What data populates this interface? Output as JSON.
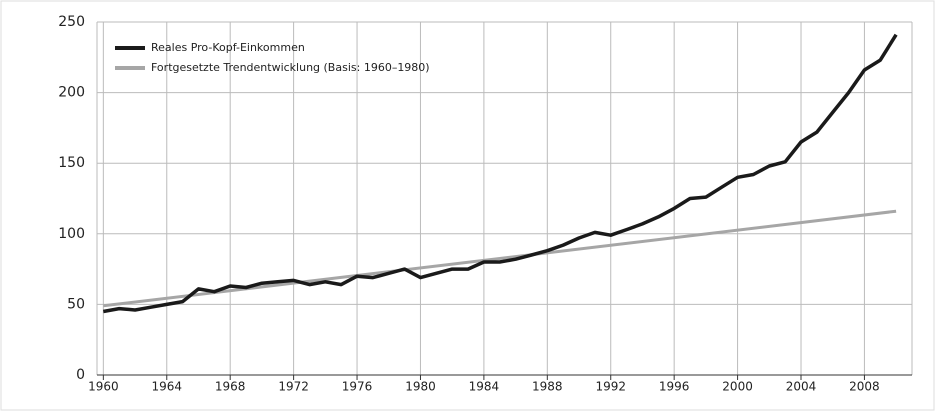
{
  "chart_data": {
    "type": "line",
    "series": [
      {
        "name": "Reales Pro-Kopf-Einkommen",
        "color": "#1a1a1a",
        "x": [
          1960,
          1961,
          1962,
          1963,
          1964,
          1965,
          1966,
          1967,
          1968,
          1969,
          1970,
          1971,
          1972,
          1973,
          1974,
          1975,
          1976,
          1977,
          1978,
          1979,
          1980,
          1981,
          1982,
          1983,
          1984,
          1985,
          1986,
          1987,
          1988,
          1989,
          1990,
          1991,
          1992,
          1993,
          1994,
          1995,
          1996,
          1997,
          1998,
          1999,
          2000,
          2001,
          2002,
          2003,
          2004,
          2005,
          2006,
          2007,
          2008,
          2009,
          2010
        ],
        "values": [
          45,
          47,
          46,
          48,
          50,
          52,
          61,
          59,
          63,
          62,
          65,
          66,
          67,
          64,
          66,
          64,
          70,
          69,
          72,
          75,
          69,
          72,
          75,
          75,
          80,
          80,
          82,
          85,
          88,
          92,
          97,
          101,
          99,
          103,
          107,
          112,
          118,
          125,
          126,
          133,
          140,
          142,
          148,
          151,
          165,
          172,
          186,
          200,
          216,
          223,
          241
        ]
      },
      {
        "name": "Fortgesetzte Trendentwicklung (Basis: 1960–1980)",
        "color": "#a6a6a6",
        "x": [
          1960,
          2010
        ],
        "values": [
          49,
          116
        ]
      }
    ],
    "xlim": [
      1959.6,
      2011
    ],
    "xticks": [
      1960,
      1964,
      1968,
      1972,
      1976,
      1980,
      1984,
      1988,
      1992,
      1996,
      2000,
      2004,
      2008
    ],
    "ylim": [
      0,
      250
    ],
    "yticks": [
      0,
      50,
      100,
      150,
      200,
      250
    ],
    "grid": true,
    "legend": "upper left"
  }
}
